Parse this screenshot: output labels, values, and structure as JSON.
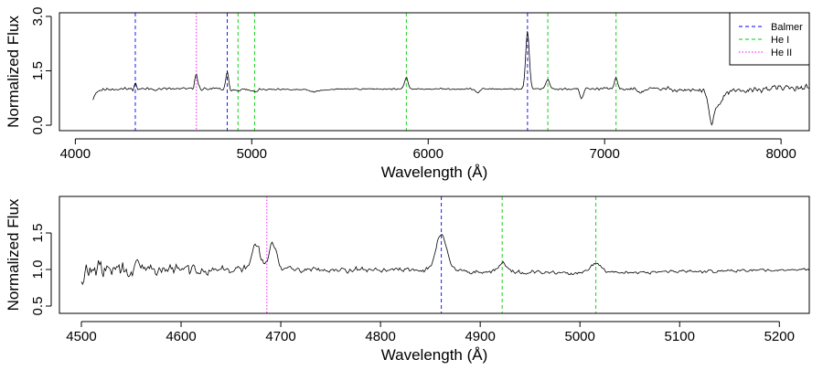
{
  "chart_data": [
    {
      "type": "line",
      "panel": "top",
      "xlabel": "Wavelength (Å)",
      "ylabel": "Normalized Flux",
      "xlim": [
        3910,
        8160
      ],
      "ylim": [
        -0.15,
        3.1
      ],
      "xticks": [
        4000,
        5000,
        6000,
        7000,
        8000
      ],
      "xtick_labels": [
        "4000",
        "5000",
        "6000",
        "7000",
        "8000"
      ],
      "yticks": [
        0.0,
        1.5,
        3.0
      ],
      "ytick_labels": [
        "0.0",
        "1.5",
        "3.0"
      ],
      "legend": {
        "placement": "top-right",
        "entries": [
          {
            "label": "Balmer",
            "color": "#0000ff",
            "style": "dashed"
          },
          {
            "label": "He I",
            "color": "#00cc00",
            "style": "dashed"
          },
          {
            "label": "He II",
            "color": "#ff00ff",
            "style": "dotted"
          }
        ]
      },
      "lines": {
        "balmer": [
          4340,
          4861,
          6563
        ],
        "he_i": [
          4922,
          5016,
          5876,
          6678,
          7065
        ],
        "he_ii": [
          4686
        ]
      },
      "spectrum": {
        "range": [
          4100,
          8160
        ],
        "continuum": [
          [
            4100,
            0.72
          ],
          [
            4115,
            0.9
          ],
          [
            4140,
            0.97
          ],
          [
            4200,
            1.0
          ],
          [
            4800,
            1.0
          ],
          [
            4870,
            0.98
          ],
          [
            5000,
            0.98
          ],
          [
            5300,
            0.98
          ],
          [
            5350,
            0.92
          ],
          [
            5420,
            0.97
          ],
          [
            5500,
            1.0
          ],
          [
            6200,
            1.0
          ],
          [
            6500,
            1.0
          ],
          [
            6850,
            1.0
          ],
          [
            7200,
            1.0
          ],
          [
            7350,
            1.0
          ],
          [
            7550,
            0.95
          ],
          [
            7650,
            0.9
          ],
          [
            7800,
            0.95
          ],
          [
            7950,
            1.02
          ],
          [
            8160,
            1.05
          ]
        ],
        "features": [
          {
            "center": 4340,
            "amp": 0.15,
            "width": 6
          },
          {
            "center": 4686,
            "amp": 0.42,
            "width": 8
          },
          {
            "center": 4861,
            "amp": 0.45,
            "width": 8
          },
          {
            "center": 5876,
            "amp": 0.3,
            "width": 10
          },
          {
            "center": 6563,
            "amp": 1.6,
            "width": 10
          },
          {
            "center": 6678,
            "amp": 0.28,
            "width": 10
          },
          {
            "center": 7065,
            "amp": 0.28,
            "width": 10
          },
          {
            "center": 5010,
            "amp": -0.06,
            "width": 15
          },
          {
            "center": 6280,
            "amp": -0.1,
            "width": 12
          },
          {
            "center": 6870,
            "amp": -0.3,
            "width": 8
          },
          {
            "center": 7605,
            "amp": -0.75,
            "width": 14
          },
          {
            "center": 7640,
            "amp": -0.35,
            "width": 25
          },
          {
            "center": 7200,
            "amp": -0.1,
            "width": 15
          }
        ],
        "noise": [
          [
            4100,
            0.05
          ],
          [
            4800,
            0.05
          ],
          [
            5300,
            0.02
          ],
          [
            6000,
            0.02
          ],
          [
            6600,
            0.03
          ],
          [
            7300,
            0.06
          ],
          [
            7700,
            0.09
          ],
          [
            8160,
            0.09
          ]
        ]
      }
    },
    {
      "type": "line",
      "panel": "bottom",
      "xlabel": "Wavelength (Å)",
      "ylabel": "Normalized Flux",
      "xlim": [
        4478,
        5230
      ],
      "ylim": [
        0.4,
        2.0
      ],
      "xticks": [
        4500,
        4600,
        4700,
        4800,
        4900,
        5000,
        5100,
        5200
      ],
      "xtick_labels": [
        "4500",
        "4600",
        "4700",
        "4800",
        "4900",
        "5000",
        "5100",
        "5200"
      ],
      "yticks": [
        0.5,
        1.0,
        1.5
      ],
      "ytick_labels": [
        "0.5",
        "1.0",
        "1.5"
      ],
      "lines": {
        "balmer": [
          4861
        ],
        "he_i": [
          4922,
          5016
        ],
        "he_ii": [
          4686
        ]
      },
      "spectrum": {
        "range": [
          4500,
          5230
        ],
        "continuum": [
          [
            4500,
            1.0
          ],
          [
            4600,
            1.0
          ],
          [
            4800,
            1.0
          ],
          [
            4900,
            0.97
          ],
          [
            5000,
            0.95
          ],
          [
            5230,
            1.0
          ]
        ],
        "features": [
          {
            "center": 4675,
            "amp": 0.35,
            "width": 4
          },
          {
            "center": 4692,
            "amp": 0.35,
            "width": 4
          },
          {
            "center": 4861,
            "amp": 0.5,
            "width": 5.5
          },
          {
            "center": 4922,
            "amp": 0.12,
            "width": 5
          },
          {
            "center": 5016,
            "amp": 0.13,
            "width": 5
          },
          {
            "center": 4501,
            "amp": -0.25,
            "width": 1.5
          }
        ],
        "noise": [
          [
            4500,
            0.14
          ],
          [
            4560,
            0.12
          ],
          [
            4620,
            0.07
          ],
          [
            4700,
            0.04
          ],
          [
            4800,
            0.04
          ],
          [
            5000,
            0.03
          ],
          [
            5230,
            0.02
          ]
        ]
      }
    }
  ]
}
